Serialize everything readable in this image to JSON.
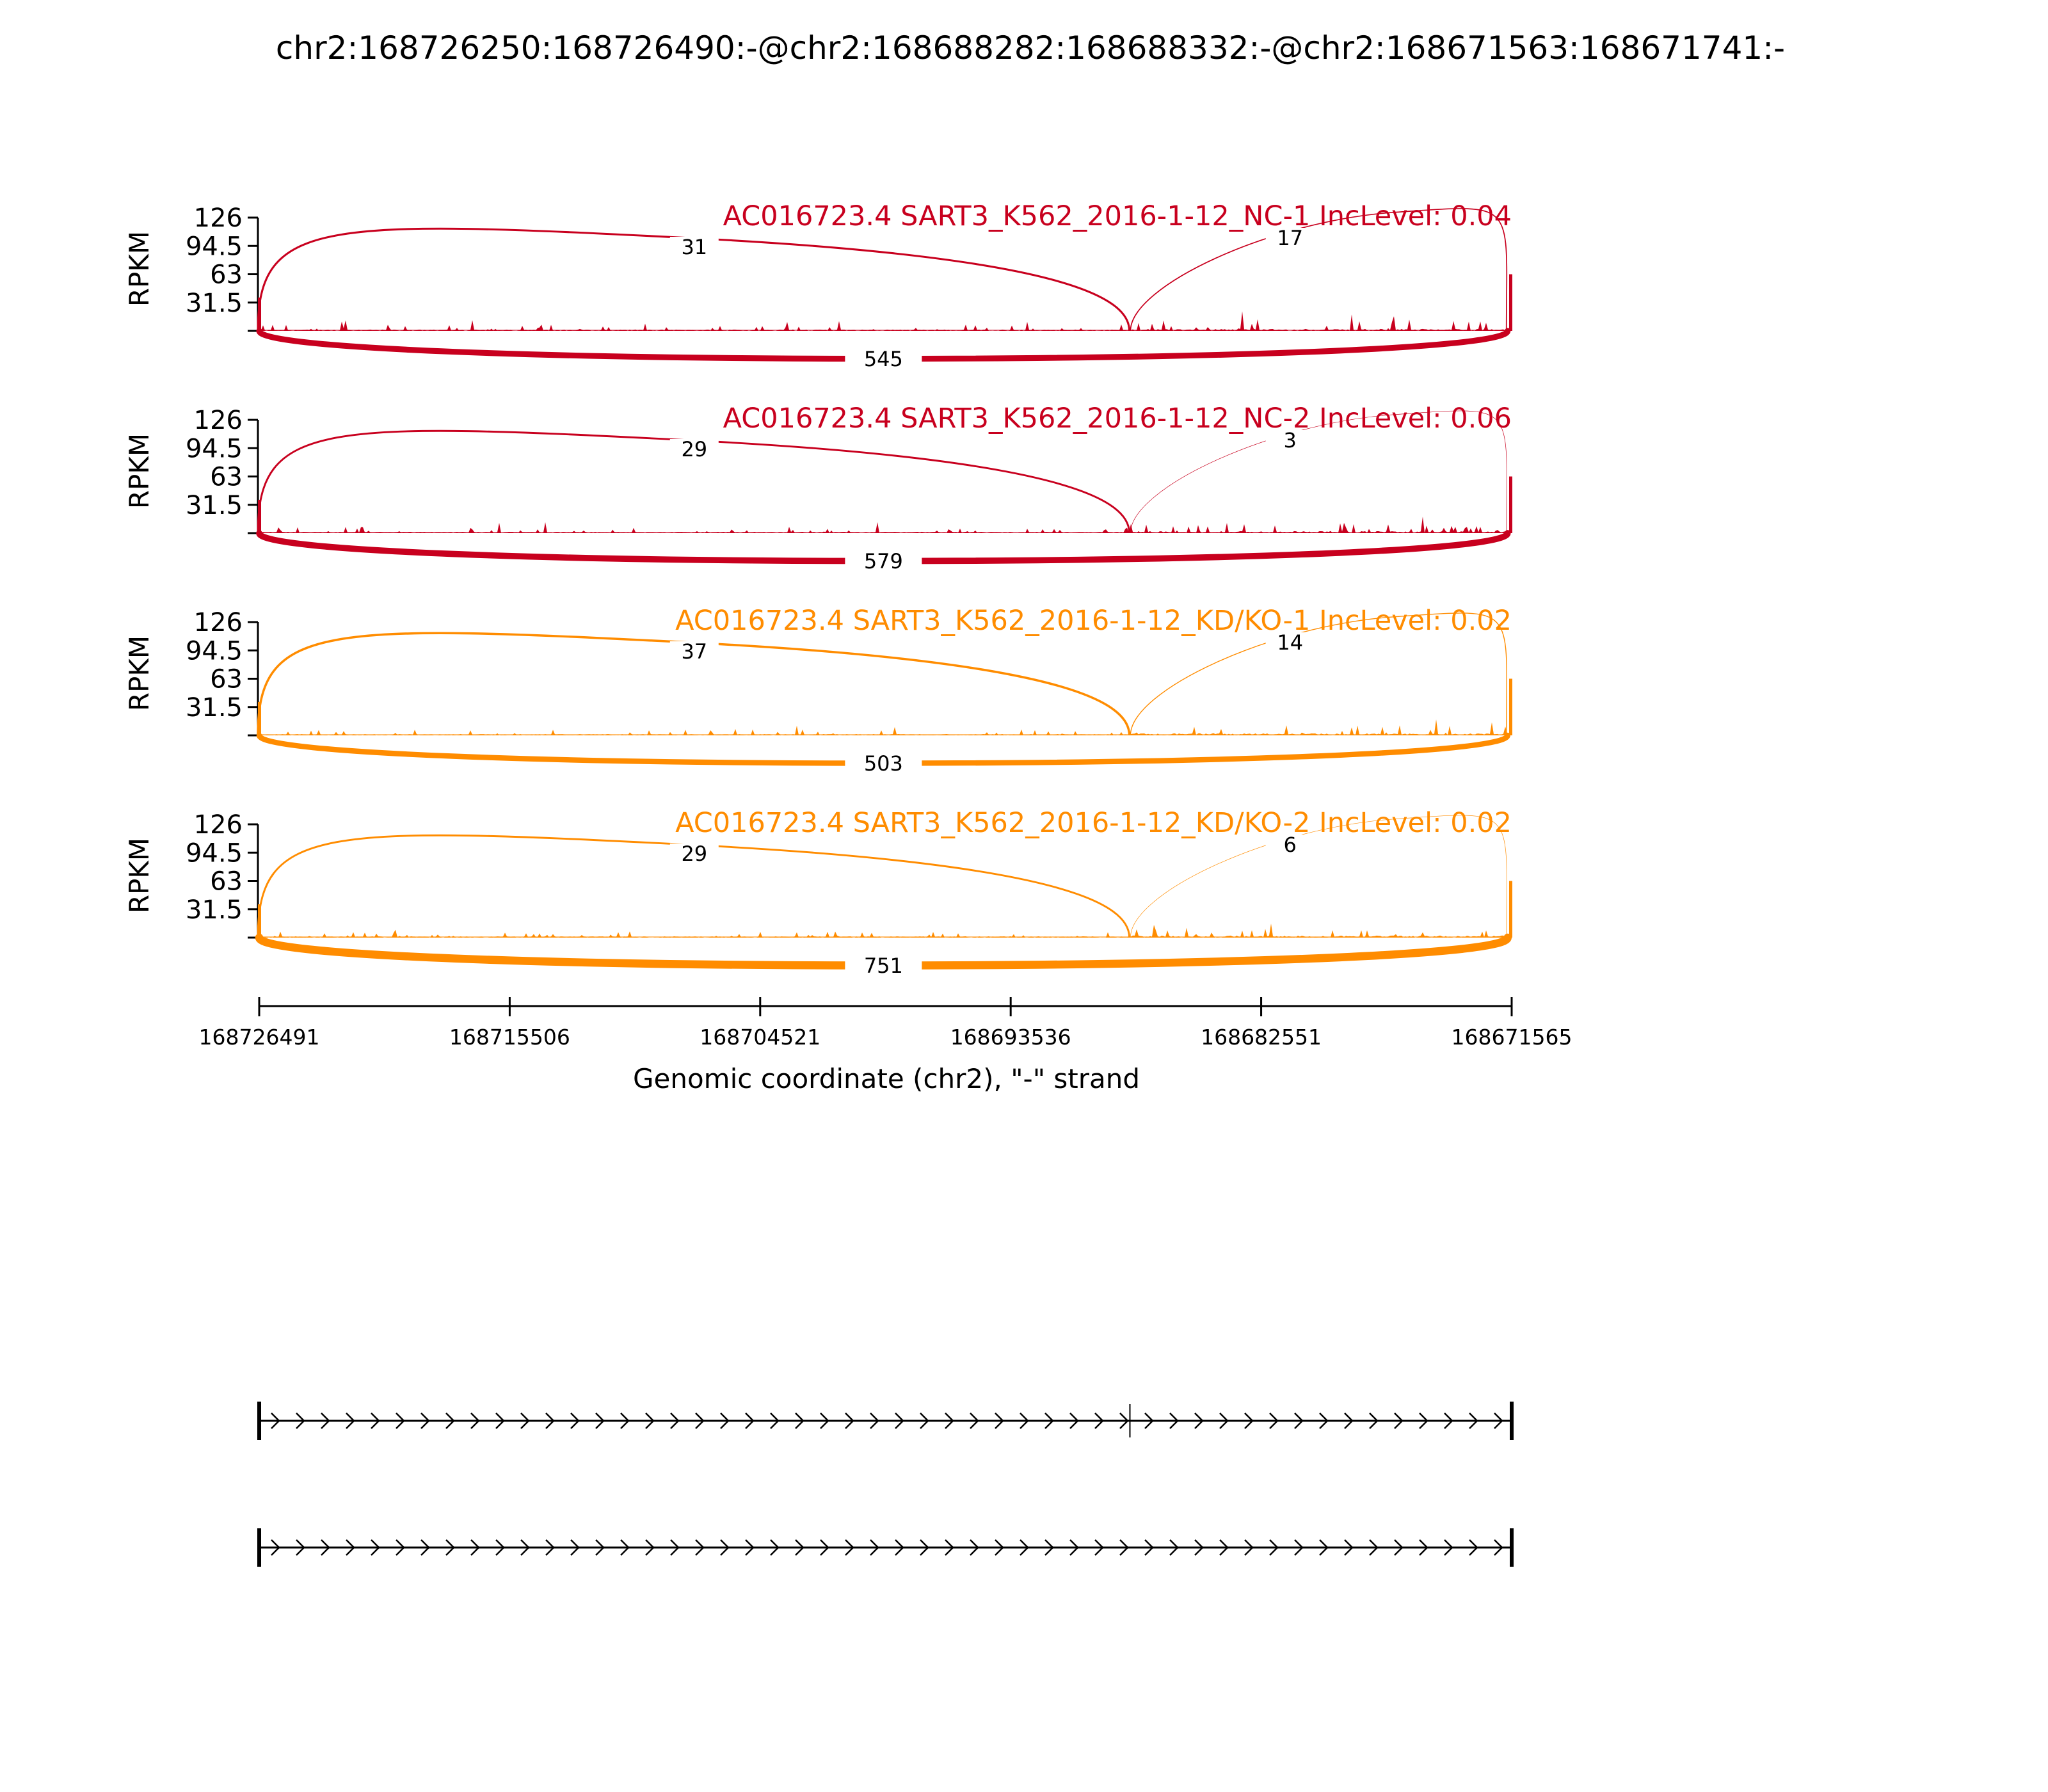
{
  "page_title": "chr2:168726250:168726490:-@chr2:168688282:168688332:-@chr2:168671563:168671741:-",
  "chart_data": {
    "type": "sashimi",
    "title": "chr2:168726250:168726490:-@chr2:168688282:168688332:-@chr2:168671563:168671741:-",
    "xlabel": "Genomic coordinate (chr2), \"-\" strand",
    "ylabel": "RPKM",
    "xlim": [
      168726491,
      168671565
    ],
    "x_ticks": [
      168726491,
      168715506,
      168704521,
      168693536,
      168682551,
      168671565
    ],
    "x_tick_labels": [
      "168726491",
      "168715506",
      "168704521",
      "168693536",
      "168682551",
      "168671565"
    ],
    "ylim": [
      0,
      126
    ],
    "y_ticks": [
      31.5,
      63,
      94.5,
      126
    ],
    "y_tick_labels": [
      "31.5",
      "63",
      "94.5",
      "126"
    ],
    "exon_coordinates": {
      "upstream_exon": [
        168726250,
        168726490
      ],
      "skipped_exon": [
        168688282,
        168688332
      ],
      "downstream_exon": [
        168671563,
        168671741
      ]
    },
    "series": [
      {
        "name": "AC016723.4 SART3_K562_2016-1-12_NC-1 IncLevel: 0.04",
        "group": "NC",
        "color": "#c8001e",
        "junctions": [
          {
            "from": 168726491,
            "to": 168688332,
            "reads": 31,
            "label": "31"
          },
          {
            "from": 168688282,
            "to": 168671741,
            "reads": 17,
            "label": "17"
          },
          {
            "from": 168726491,
            "to": 168671741,
            "reads": 545,
            "label": "545"
          }
        ]
      },
      {
        "name": "AC016723.4 SART3_K562_2016-1-12_NC-2 IncLevel: 0.06",
        "group": "NC",
        "color": "#c8001e",
        "junctions": [
          {
            "from": 168726491,
            "to": 168688332,
            "reads": 29,
            "label": "29"
          },
          {
            "from": 168688282,
            "to": 168671741,
            "reads": 3,
            "label": "3"
          },
          {
            "from": 168726491,
            "to": 168671741,
            "reads": 579,
            "label": "579"
          }
        ]
      },
      {
        "name": "AC016723.4 SART3_K562_2016-1-12_KD/KO-1 IncLevel: 0.02",
        "group": "KD/KO",
        "color": "#ff8c00",
        "junctions": [
          {
            "from": 168726491,
            "to": 168688332,
            "reads": 37,
            "label": "37"
          },
          {
            "from": 168688282,
            "to": 168671741,
            "reads": 14,
            "label": "14"
          },
          {
            "from": 168726491,
            "to": 168671741,
            "reads": 503,
            "label": "503"
          }
        ]
      },
      {
        "name": "AC016723.4 SART3_K562_2016-1-12_KD/KO-2 IncLevel: 0.02",
        "group": "KD/KO",
        "color": "#ff8c00",
        "junctions": [
          {
            "from": 168726491,
            "to": 168688332,
            "reads": 29,
            "label": "29"
          },
          {
            "from": 168688282,
            "to": 168671741,
            "reads": 6,
            "label": "6"
          },
          {
            "from": 168726491,
            "to": 168671741,
            "reads": 751,
            "label": "751"
          }
        ]
      }
    ],
    "isoforms": [
      {
        "exons": [
          168726491,
          168688307,
          168671565
        ]
      },
      {
        "exons": [
          168726491,
          168671565
        ]
      }
    ]
  }
}
